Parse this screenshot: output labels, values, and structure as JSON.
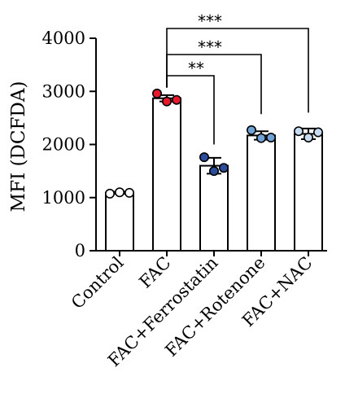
{
  "chart_data": {
    "type": "bar",
    "title": "",
    "xlabel": "",
    "ylabel": "MFI (DCFDA)",
    "ylim": [
      0,
      4000
    ],
    "yticks": [
      0,
      1000,
      2000,
      3000,
      4000
    ],
    "grid": false,
    "categories": [
      "Control",
      "FAC",
      "FAC+Ferrostatin",
      "FAC+Rotenone",
      "FAC+NAC"
    ],
    "values": [
      1090,
      2870,
      1600,
      2170,
      2200
    ],
    "errors": [
      20,
      60,
      150,
      80,
      100
    ],
    "points": [
      [
        1075,
        1100,
        1090
      ],
      [
        2960,
        2810,
        2840
      ],
      [
        1760,
        1500,
        1560
      ],
      [
        2270,
        2120,
        2130
      ],
      [
        2250,
        2130,
        2230
      ]
    ],
    "point_colors": [
      "#ffffff",
      "#e8192c",
      "#2b4c9b",
      "#6fa2d6",
      "#c7dcf0"
    ],
    "comparisons": [
      {
        "from": "FAC",
        "to": "FAC+Ferrostatin",
        "label": "**"
      },
      {
        "from": "FAC",
        "to": "FAC+Rotenone",
        "label": "***"
      },
      {
        "from": "FAC",
        "to": "FAC+NAC",
        "label": "***"
      }
    ]
  }
}
